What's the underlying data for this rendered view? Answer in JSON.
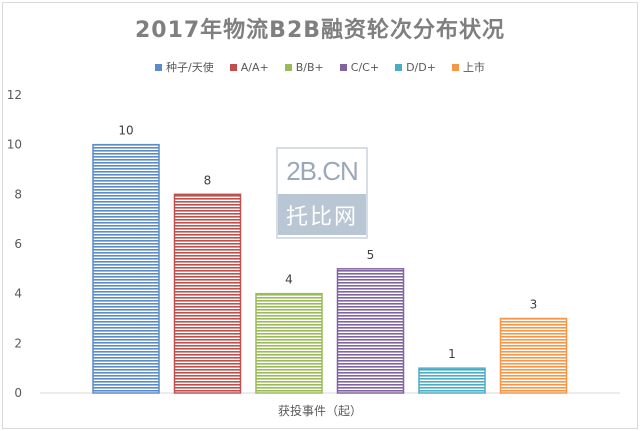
{
  "chart_data": {
    "type": "bar",
    "title": "2017年物流B2B融资轮次分布状况",
    "xlabel": "获投事件（起）",
    "ylabel": "",
    "ylim": [
      0,
      12
    ],
    "yticks": [
      0,
      2,
      4,
      6,
      8,
      10,
      12
    ],
    "grid": false,
    "legend_position": "top",
    "series": [
      {
        "name": "种子/天使",
        "value": 10,
        "color": "#5b8bc9"
      },
      {
        "name": "A/A+",
        "value": 8,
        "color": "#c0504d"
      },
      {
        "name": "B/B+",
        "value": 4,
        "color": "#9bbb59"
      },
      {
        "name": "C/C+",
        "value": 5,
        "color": "#8064a2"
      },
      {
        "name": "D/D+",
        "value": 1,
        "color": "#4bacc6"
      },
      {
        "name": "上市",
        "value": 3,
        "color": "#f79646"
      }
    ]
  },
  "watermark": {
    "top_text": "2B.CN",
    "bottom_text": "托比网"
  }
}
